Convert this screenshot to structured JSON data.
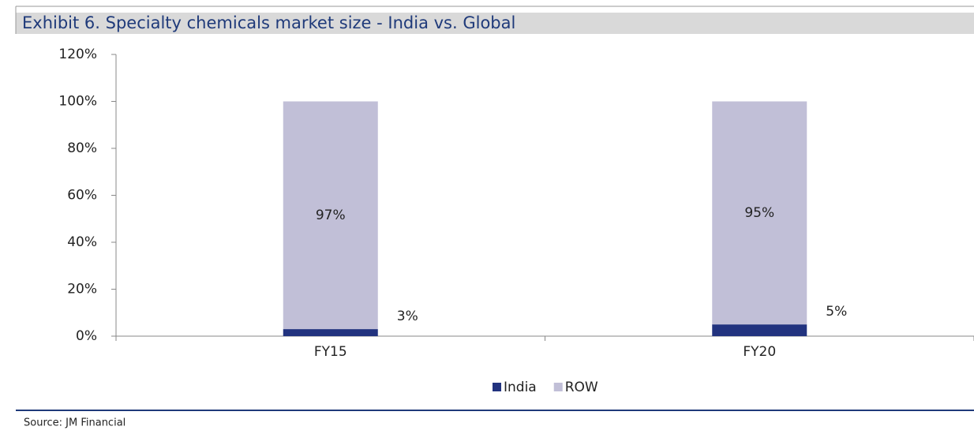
{
  "chart_data": {
    "type": "stacked_bar",
    "title": "Exhibit 6. Specialty chemicals market size - India vs. Global",
    "source": "Source: JM Financial",
    "categories": [
      "FY15",
      "FY20"
    ],
    "series": [
      {
        "name": "India",
        "color": "#22337f",
        "values": [
          3,
          5
        ],
        "value_labels": [
          "3%",
          "5%"
        ]
      },
      {
        "name": "ROW",
        "color": "#c1bfd7",
        "values": [
          97,
          95
        ],
        "value_labels": [
          "97%",
          "95%"
        ]
      }
    ],
    "ylim": [
      0,
      120
    ],
    "yticks": [
      {
        "value": 0,
        "label": "0%"
      },
      {
        "value": 20,
        "label": "20%"
      },
      {
        "value": 40,
        "label": "40%"
      },
      {
        "value": 60,
        "label": "60%"
      },
      {
        "value": 80,
        "label": "80%"
      },
      {
        "value": 100,
        "label": "100%"
      },
      {
        "value": 120,
        "label": "120%"
      }
    ],
    "legend": "bottom"
  }
}
